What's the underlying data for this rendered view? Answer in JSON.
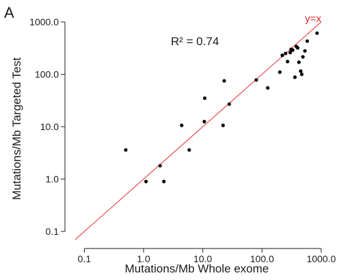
{
  "panel_label": "A",
  "chart_data": {
    "type": "scatter",
    "xlabel": "Mutations/Mb Whole exome",
    "ylabel": "Mutations/Mb Targeted Test",
    "x_scale": "log",
    "y_scale": "log",
    "x_ticks": [
      0.1,
      1.0,
      10.0,
      100.0,
      1000.0
    ],
    "x_tick_labels": [
      "0.1",
      "1.0",
      "10.0",
      "100.0",
      "1000.0"
    ],
    "y_ticks": [
      0.1,
      1.0,
      10.0,
      100.0,
      1000.0
    ],
    "y_tick_labels": [
      "0.1",
      "1.0",
      "10.0",
      "100.0",
      "1000.0"
    ],
    "xlim": [
      0.07,
      1000
    ],
    "ylim": [
      0.07,
      1000
    ],
    "grid": false,
    "annotations": {
      "r2_text": "R² = 0.74",
      "identity_line_label": "y=x"
    },
    "identity_line_color": "#e8262d",
    "point_color": "#000000",
    "points": [
      {
        "x": 0.5,
        "y": 3.6
      },
      {
        "x": 1.1,
        "y": 0.9
      },
      {
        "x": 1.9,
        "y": 1.8
      },
      {
        "x": 2.2,
        "y": 0.9
      },
      {
        "x": 4.4,
        "y": 10.6
      },
      {
        "x": 5.9,
        "y": 3.6
      },
      {
        "x": 10.6,
        "y": 12.5
      },
      {
        "x": 10.8,
        "y": 35
      },
      {
        "x": 22,
        "y": 10.6
      },
      {
        "x": 23,
        "y": 75
      },
      {
        "x": 28,
        "y": 27
      },
      {
        "x": 80,
        "y": 78
      },
      {
        "x": 125,
        "y": 55
      },
      {
        "x": 200,
        "y": 110
      },
      {
        "x": 220,
        "y": 230
      },
      {
        "x": 250,
        "y": 250
      },
      {
        "x": 270,
        "y": 175
      },
      {
        "x": 300,
        "y": 260
      },
      {
        "x": 310,
        "y": 300
      },
      {
        "x": 330,
        "y": 290
      },
      {
        "x": 360,
        "y": 88
      },
      {
        "x": 380,
        "y": 340
      },
      {
        "x": 400,
        "y": 320
      },
      {
        "x": 420,
        "y": 170
      },
      {
        "x": 450,
        "y": 115
      },
      {
        "x": 470,
        "y": 100
      },
      {
        "x": 490,
        "y": 215
      },
      {
        "x": 530,
        "y": 280
      },
      {
        "x": 580,
        "y": 430
      },
      {
        "x": 850,
        "y": 610
      }
    ]
  }
}
